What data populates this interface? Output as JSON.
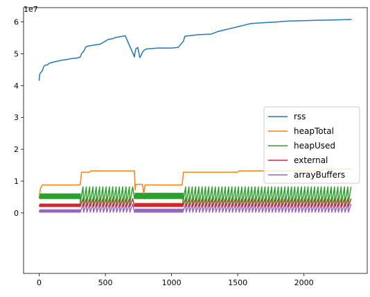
{
  "chart_data": {
    "type": "line",
    "offset_label": "1e7",
    "xlim": [
      -118,
      2478
    ],
    "ylim": [
      -1.9,
      6.45
    ],
    "x_ticks": [
      0,
      500,
      1000,
      1500,
      2000
    ],
    "x_tick_labels": [
      "0",
      "500",
      "1000",
      "1500",
      "2000"
    ],
    "y_ticks": [
      0,
      1,
      2,
      3,
      4,
      5,
      6
    ],
    "y_tick_labels": [
      "0",
      "1",
      "2",
      "3",
      "4",
      "5",
      "6"
    ],
    "grid": false,
    "legend_position": "center-right",
    "series": [
      {
        "name": "rss",
        "color": "#1f77b4",
        "x": [
          0,
          2,
          6,
          15,
          25,
          35,
          45,
          55,
          65,
          75,
          90,
          110,
          130,
          150,
          170,
          190,
          210,
          230,
          250,
          270,
          290,
          310,
          320,
          330,
          340,
          350,
          360,
          380,
          420,
          460,
          480,
          500,
          510,
          520,
          560,
          570,
          580,
          600,
          630,
          650,
          720,
          722,
          730,
          745,
          760,
          770,
          780,
          790,
          810,
          860,
          900,
          950,
          1000,
          1050,
          1070,
          1090,
          1100,
          1200,
          1300,
          1350,
          1400,
          1450,
          1500,
          1550,
          1600,
          1700,
          1800,
          1850,
          1900,
          2000,
          2100,
          2200,
          2300,
          2360
        ],
        "y": [
          4.15,
          4.3,
          4.38,
          4.42,
          4.48,
          4.6,
          4.64,
          4.65,
          4.66,
          4.7,
          4.72,
          4.74,
          4.76,
          4.78,
          4.8,
          4.81,
          4.82,
          4.84,
          4.85,
          4.86,
          4.87,
          4.9,
          5.0,
          5.05,
          5.1,
          5.2,
          5.23,
          5.25,
          5.28,
          5.3,
          5.35,
          5.4,
          5.42,
          5.45,
          5.48,
          5.5,
          5.52,
          5.53,
          5.55,
          5.57,
          4.9,
          5.0,
          5.15,
          5.2,
          4.88,
          4.95,
          5.05,
          5.1,
          5.15,
          5.17,
          5.18,
          5.18,
          5.18,
          5.2,
          5.3,
          5.4,
          5.55,
          5.6,
          5.62,
          5.7,
          5.75,
          5.8,
          5.85,
          5.9,
          5.95,
          5.98,
          6.0,
          6.02,
          6.03,
          6.04,
          6.05,
          6.06,
          6.07,
          6.08
        ]
      },
      {
        "name": "heapTotal",
        "color": "#ff7f0e",
        "x": [
          0,
          5,
          10,
          25,
          50,
          310,
          320,
          380,
          390,
          720,
          725,
          730,
          780,
          790,
          800,
          850,
          1080,
          1090,
          1500,
          1510,
          2140,
          2150,
          2360
        ],
        "y": [
          0.55,
          0.62,
          0.78,
          0.88,
          0.88,
          0.88,
          1.28,
          1.28,
          1.32,
          1.32,
          0.72,
          0.9,
          0.9,
          0.6,
          0.88,
          0.88,
          0.88,
          1.28,
          1.28,
          1.32,
          1.32,
          1.38,
          1.38
        ]
      },
      {
        "name": "heapUsed",
        "color": "#2ca02c",
        "band": true,
        "low": 0.45,
        "high": 0.6,
        "segments": [
          {
            "from": 0,
            "to": 310,
            "low": 0.45,
            "high": 0.6,
            "period": 8
          },
          {
            "from": 310,
            "to": 720,
            "low": 0.3,
            "high": 0.82,
            "period": 25
          },
          {
            "from": 720,
            "to": 1085,
            "low": 0.45,
            "high": 0.62,
            "period": 8
          },
          {
            "from": 1085,
            "to": 2360,
            "low": 0.3,
            "high": 0.82,
            "period": 25
          }
        ]
      },
      {
        "name": "external",
        "color": "#d62728",
        "segments": [
          {
            "from": 0,
            "to": 310,
            "low": 0.2,
            "high": 0.28,
            "period": 8
          },
          {
            "from": 310,
            "to": 720,
            "low": 0.2,
            "high": 0.45,
            "period": 25
          },
          {
            "from": 720,
            "to": 1085,
            "low": 0.2,
            "high": 0.3,
            "period": 8
          },
          {
            "from": 1085,
            "to": 2360,
            "low": 0.2,
            "high": 0.45,
            "period": 25
          }
        ]
      },
      {
        "name": "arrayBuffers",
        "color": "#9467bd",
        "segments": [
          {
            "from": 0,
            "to": 310,
            "low": 0.02,
            "high": 0.1,
            "period": 8
          },
          {
            "from": 310,
            "to": 720,
            "low": 0.02,
            "high": 0.28,
            "period": 25
          },
          {
            "from": 720,
            "to": 1085,
            "low": 0.02,
            "high": 0.12,
            "period": 8
          },
          {
            "from": 1085,
            "to": 2360,
            "low": 0.02,
            "high": 0.28,
            "period": 25
          }
        ]
      }
    ]
  }
}
